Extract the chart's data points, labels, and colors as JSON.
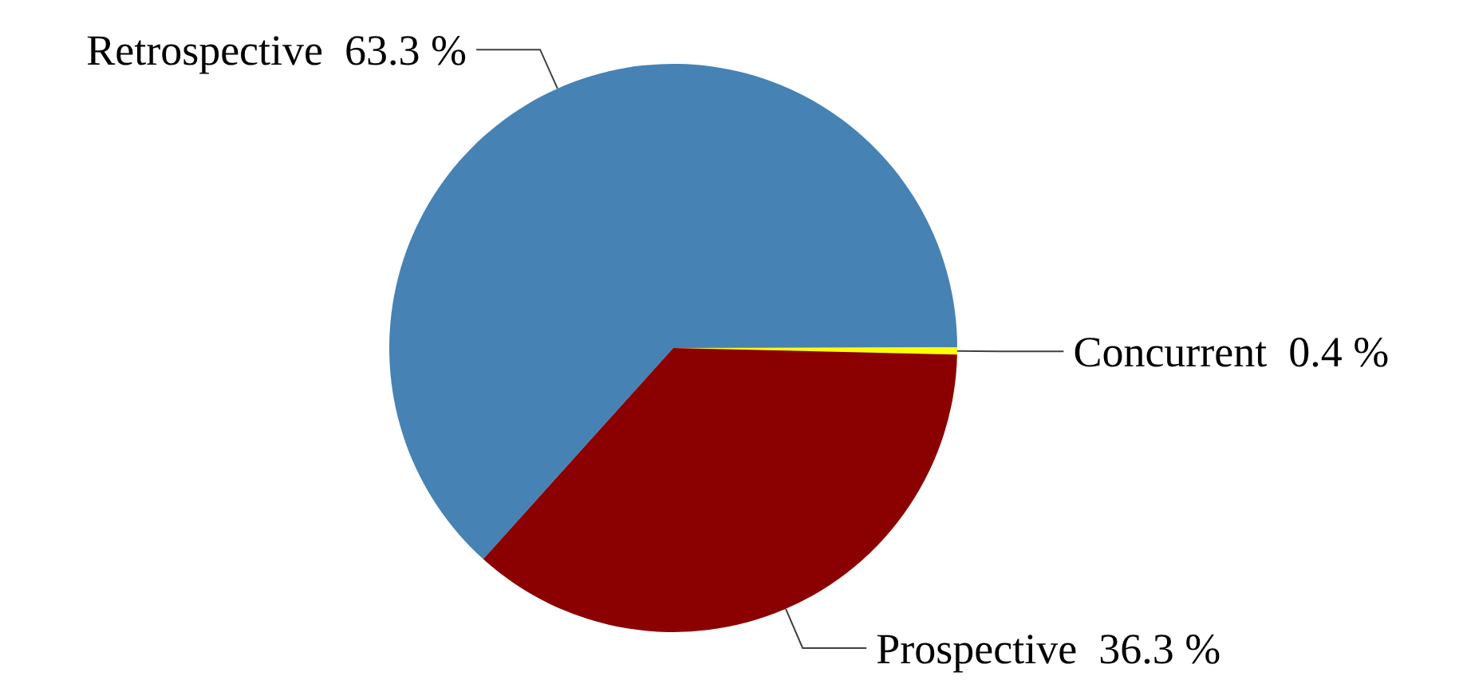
{
  "chart_data": {
    "type": "pie",
    "categories": [
      "Retrospective",
      "Concurrent",
      "Prospective"
    ],
    "values": [
      63.3,
      0.4,
      36.3
    ],
    "value_labels": [
      "63.3 %",
      "0.4 %",
      "36.3 %"
    ],
    "colors": [
      "#4682b4",
      "#ffff00",
      "#8b0000"
    ]
  }
}
